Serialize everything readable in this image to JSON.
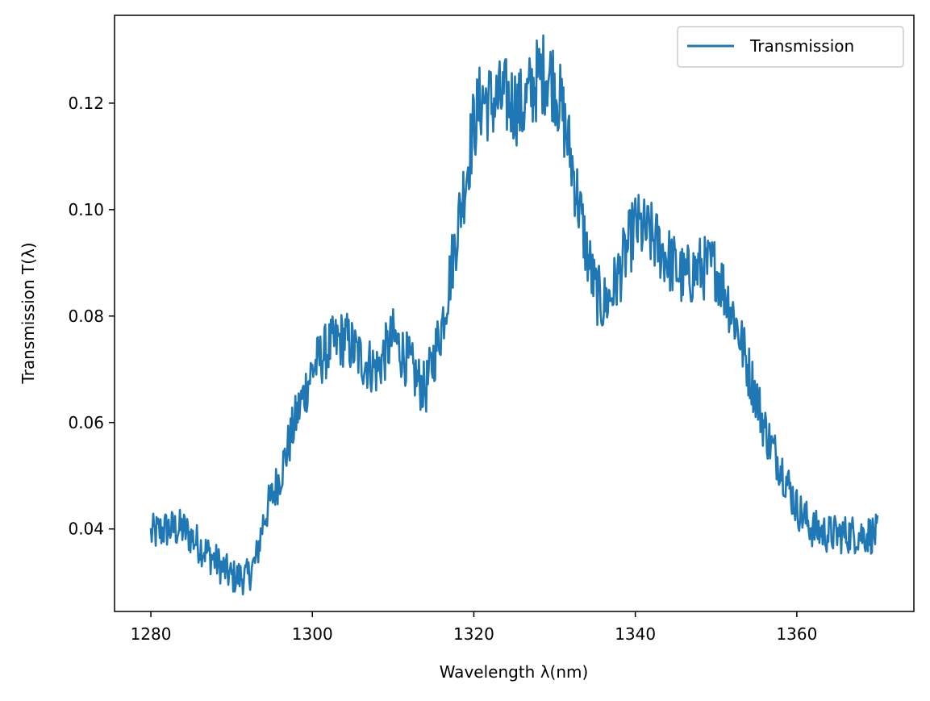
{
  "chart_data": {
    "type": "line",
    "xlabel": "Wavelength λ(nm)",
    "ylabel": "Transmission T(λ)",
    "xlim": [
      1275.5,
      1374.5
    ],
    "ylim": [
      0.0245,
      0.1365
    ],
    "xticks": [
      1280,
      1300,
      1320,
      1340,
      1360
    ],
    "xtick_labels": [
      "1280",
      "1300",
      "1320",
      "1340",
      "1360"
    ],
    "yticks": [
      0.04,
      0.06,
      0.08,
      0.1,
      0.12
    ],
    "ytick_labels": [
      "0.04",
      "0.06",
      "0.08",
      "0.10",
      "0.12"
    ],
    "grid": false,
    "legend": {
      "position": "top-right",
      "entries": [
        "Transmission"
      ]
    },
    "series": [
      {
        "name": "Transmission",
        "color": "#1f77b4",
        "noise_amplitude": 0.003,
        "x": [
          1280,
          1282,
          1284,
          1286,
          1288,
          1290,
          1292,
          1293,
          1294,
          1296,
          1298,
          1300,
          1302,
          1304,
          1306,
          1308,
          1310,
          1312,
          1313,
          1314,
          1315,
          1316,
          1317,
          1318,
          1319,
          1320,
          1321,
          1322,
          1324,
          1326,
          1328,
          1329,
          1330,
          1331,
          1332,
          1333,
          1334,
          1335,
          1336,
          1337,
          1338,
          1340,
          1342,
          1344,
          1346,
          1348,
          1350,
          1351,
          1352,
          1353,
          1354,
          1355,
          1356,
          1357,
          1358,
          1359,
          1360,
          1362,
          1364,
          1366,
          1368,
          1370
        ],
        "y": [
          0.039,
          0.04,
          0.04,
          0.037,
          0.034,
          0.031,
          0.031,
          0.034,
          0.042,
          0.05,
          0.061,
          0.07,
          0.074,
          0.076,
          0.072,
          0.07,
          0.076,
          0.071,
          0.068,
          0.066,
          0.072,
          0.078,
          0.087,
          0.097,
          0.106,
          0.116,
          0.121,
          0.12,
          0.121,
          0.119,
          0.125,
          0.126,
          0.124,
          0.118,
          0.11,
          0.101,
          0.092,
          0.085,
          0.082,
          0.084,
          0.088,
          0.097,
          0.095,
          0.091,
          0.087,
          0.089,
          0.089,
          0.085,
          0.081,
          0.076,
          0.07,
          0.065,
          0.059,
          0.055,
          0.052,
          0.048,
          0.044,
          0.04,
          0.039,
          0.039,
          0.039,
          0.039
        ]
      }
    ]
  }
}
